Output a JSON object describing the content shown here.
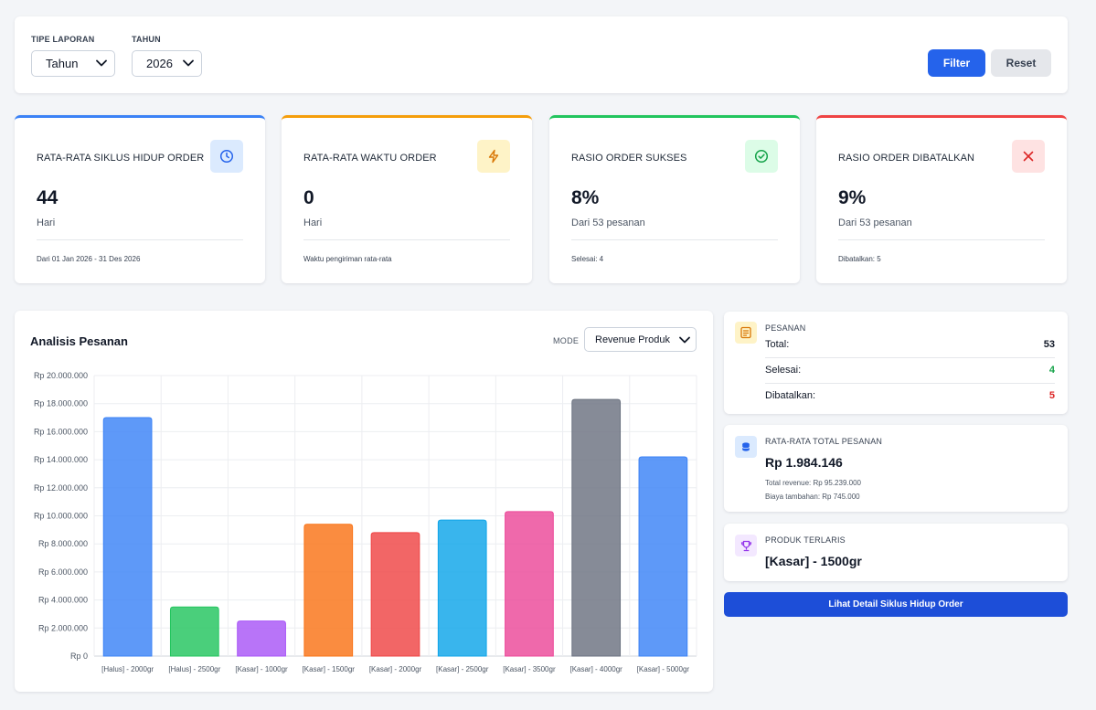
{
  "filters": {
    "report_type_label": "TIPE LAPORAN",
    "report_type_value": "Tahun",
    "year_label": "TAHUN",
    "year_value": "2026",
    "filter_button": "Filter",
    "reset_button": "Reset"
  },
  "cards": [
    {
      "title": "RATA-RATA SIKLUS HIDUP ORDER",
      "value": "44",
      "sub": "Hari",
      "foot": "Dari 01 Jan 2026 - 31 Des 2026",
      "color": "#3b82f6",
      "icon": "clock-icon",
      "icon_bg": "#dbeafe",
      "icon_color": "#2563eb"
    },
    {
      "title": "RATA-RATA WAKTU ORDER",
      "value": "0",
      "sub": "Hari",
      "foot": "Waktu pengiriman rata-rata",
      "color": "#f59e0b",
      "icon": "lightning-icon",
      "icon_bg": "#fef3c7",
      "icon_color": "#d97706"
    },
    {
      "title": "RASIO ORDER SUKSES",
      "value": "8%",
      "sub": "Dari 53 pesanan",
      "foot": "Selesai: 4",
      "color": "#22c55e",
      "icon": "check-circle-icon",
      "icon_bg": "#dcfce7",
      "icon_color": "#16a34a"
    },
    {
      "title": "RASIO ORDER DIBATALKAN",
      "value": "9%",
      "sub": "Dari 53 pesanan",
      "foot": "Dibatalkan: 5",
      "color": "#ef4444",
      "icon": "x-icon",
      "icon_bg": "#fee2e2",
      "icon_color": "#dc2626"
    }
  ],
  "analysis": {
    "title": "Analisis Pesanan",
    "mode_label": "MODE",
    "mode_value": "Revenue Produk"
  },
  "chart_data": {
    "type": "bar",
    "title": "",
    "xlabel": "",
    "ylabel": "",
    "categories": [
      "[Halus] - 2000gr",
      "[Halus] - 2500gr",
      "[Kasar] - 1000gr",
      "[Kasar] - 1500gr",
      "[Kasar] - 2000gr",
      "[Kasar] - 2500gr",
      "[Kasar] - 3500gr",
      "[Kasar] - 4000gr",
      "[Kasar] - 5000gr"
    ],
    "values": [
      17000000,
      3500000,
      2500000,
      9400000,
      8800000,
      9700000,
      10300000,
      18300000,
      14200000
    ],
    "colors": [
      "#3b82f6",
      "#22c55e",
      "#a855f7",
      "#f97316",
      "#ef4444",
      "#0ea5e9",
      "#ec4899",
      "#6b7280",
      "#3b82f6"
    ],
    "ylim": [
      0,
      20000000
    ],
    "yticks": [
      0,
      2000000,
      4000000,
      6000000,
      8000000,
      10000000,
      12000000,
      14000000,
      16000000,
      18000000,
      20000000
    ],
    "ytick_labels": [
      "Rp 0",
      "Rp 2.000.000",
      "Rp 4.000.000",
      "Rp 6.000.000",
      "Rp 8.000.000",
      "Rp 10.000.000",
      "Rp 12.000.000",
      "Rp 14.000.000",
      "Rp 16.000.000",
      "Rp 18.000.000",
      "Rp 20.000.000"
    ],
    "grid": true,
    "legend": "none"
  },
  "orders": {
    "title": "PESANAN",
    "total_label": "Total:",
    "total_value": "53",
    "done_label": "Selesai:",
    "done_value": "4",
    "cancel_label": "Dibatalkan:",
    "cancel_value": "5",
    "done_color": "#16a34a",
    "cancel_color": "#dc2626"
  },
  "avg_total": {
    "title": "RATA-RATA TOTAL PESANAN",
    "value": "Rp 1.984.146",
    "revenue": "Total revenue: Rp 95.239.000",
    "extra": "Biaya tambahan: Rp 745.000"
  },
  "top_product": {
    "title": "PRODUK TERLARIS",
    "value": "[Kasar] - 1500gr"
  },
  "detail_button": "Lihat Detail Siklus Hidup Order"
}
